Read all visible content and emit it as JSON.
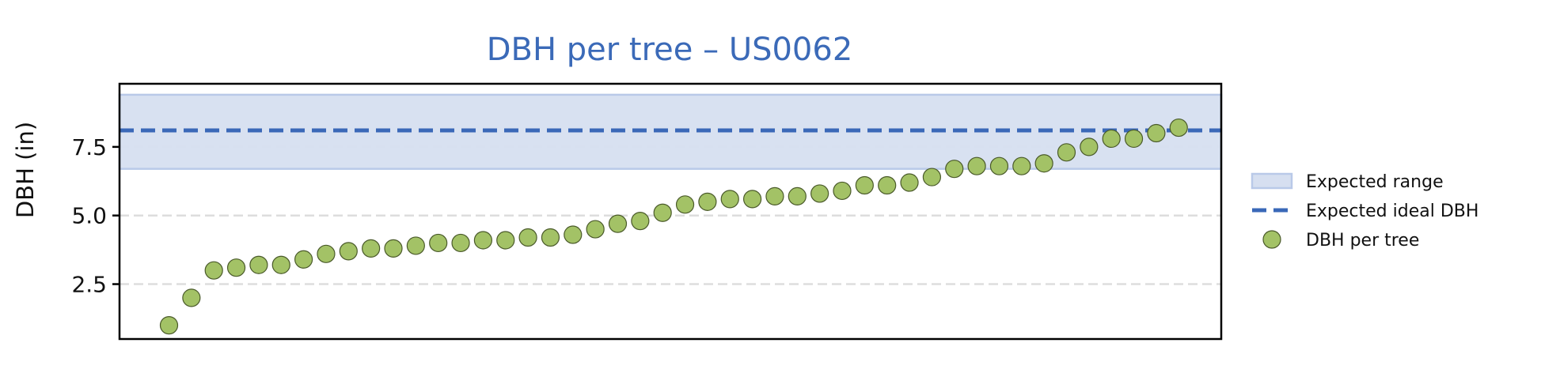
{
  "chart_data": {
    "type": "scatter",
    "title": "DBH per tree – US0062",
    "xlabel": "",
    "ylabel": "DBH (in)",
    "y_ticks": [
      "2.5",
      "5.0",
      "7.5"
    ],
    "y_tick_values": [
      2.5,
      5.0,
      7.5
    ],
    "ylim": [
      0.5,
      9.8
    ],
    "x_ticks_visible": false,
    "grid": "y-dashed",
    "legend_placement": "right, outside plot",
    "expected_range": [
      6.7,
      9.4
    ],
    "expected_ideal": 8.1,
    "series": [
      {
        "name": "DBH per tree",
        "values": [
          1.0,
          2.0,
          3.0,
          3.1,
          3.2,
          3.2,
          3.4,
          3.6,
          3.7,
          3.8,
          3.8,
          3.9,
          4.0,
          4.0,
          4.1,
          4.1,
          4.2,
          4.2,
          4.3,
          4.5,
          4.7,
          4.8,
          5.1,
          5.4,
          5.5,
          5.6,
          5.6,
          5.7,
          5.7,
          5.8,
          5.9,
          6.1,
          6.1,
          6.2,
          6.4,
          6.7,
          6.8,
          6.8,
          6.8,
          6.9,
          7.3,
          7.5,
          7.8,
          7.8,
          8.0,
          8.2
        ]
      }
    ],
    "legend": [
      {
        "key": "range",
        "label": "Expected range"
      },
      {
        "key": "ideal",
        "label": "Expected ideal DBH"
      },
      {
        "key": "points",
        "label": "DBH per tree"
      }
    ],
    "colors": {
      "title": "#3b6ab8",
      "range_fill": "#d6dff0",
      "range_edge": "#b9c9e8",
      "ideal_line": "#3a68b8",
      "point_fill": "#a3c266",
      "point_edge": "#4a5a2a",
      "grid": "#dddddd"
    }
  }
}
